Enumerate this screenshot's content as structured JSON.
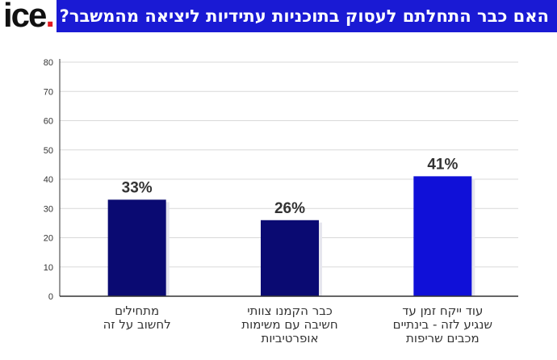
{
  "header": {
    "logo_text": "ice",
    "logo_dot": ".",
    "title": "האם כבר התחלתם לעסוק בתוכניות עתידיות ליציאה מהמשבר?"
  },
  "colors": {
    "banner": "#1a1ad4",
    "bar_dark": "#0a0a72",
    "bar_bright": "#1010d8",
    "logo_dot": "#e11b22"
  },
  "chart_data": {
    "type": "bar",
    "title": "האם כבר התחלתם לעסוק בתוכניות עתידיות ליציאה מהמשבר?",
    "categories": [
      [
        "מתחילים",
        "לחשוב על זה"
      ],
      [
        "כבר הקמנו צוותי",
        "חשיבה עם משימות",
        "אופרטיביות"
      ],
      [
        "עוד ייקח זמן עד",
        "שנגיע לזה - בינתיים",
        "מכבים שריפות"
      ]
    ],
    "values": [
      33,
      26,
      41
    ],
    "data_labels": [
      "33%",
      "26%",
      "41%"
    ],
    "bar_colors": [
      "#0a0a72",
      "#0a0a72",
      "#1010d8"
    ],
    "ylim": [
      0,
      80
    ],
    "yticks": [
      0,
      10,
      20,
      30,
      40,
      50,
      60,
      70,
      80
    ],
    "grid": true,
    "xlabel": "",
    "ylabel": ""
  }
}
